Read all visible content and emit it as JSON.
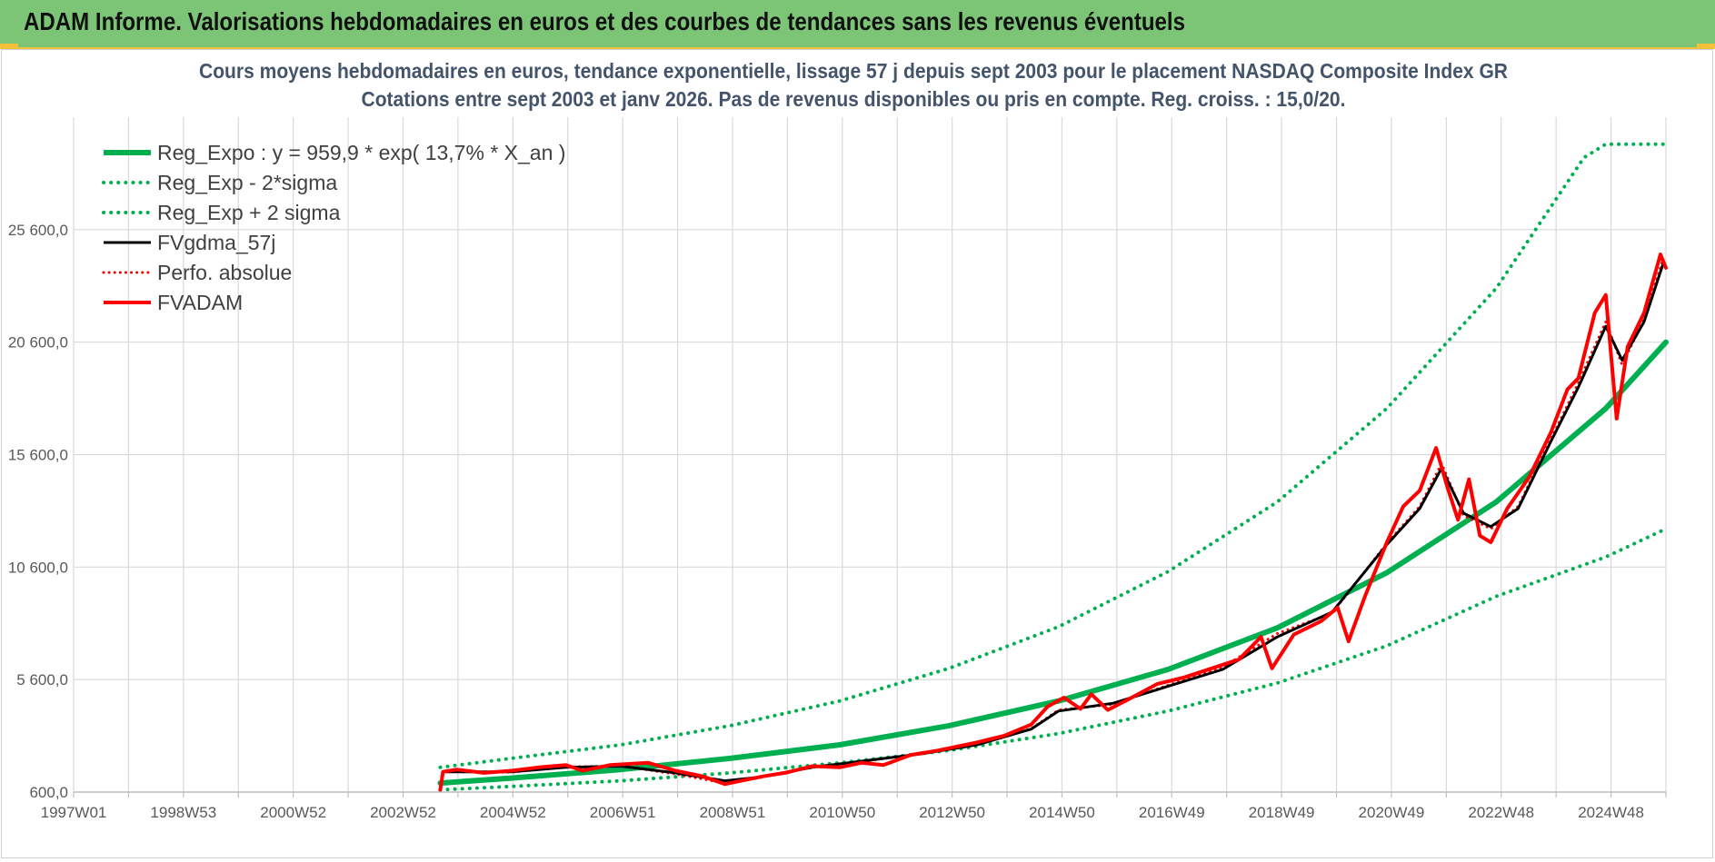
{
  "header": {
    "title": "ADAM Informe. Valorisations hebdomadaires en euros et des courbes de tendances sans les revenus éventuels",
    "colors": {
      "background": "#7cc576",
      "accent": "#f3c13a"
    }
  },
  "chart_data": {
    "type": "line",
    "title_line1": "Cours moyens hebdomadaires en euros, tendance exponentielle, lissage 57 j depuis sept 2003 pour le placement NASDAQ Composite Index GR",
    "title_line2": "Cotations entre sept 2003 et janv 2026. Pas de revenus disponibles ou pris en compte. Reg. croiss. : 15,0/20.",
    "xlabel": "",
    "ylabel": "",
    "x_tick_labels": [
      "1997W01",
      "1998W53",
      "2000W52",
      "2002W52",
      "2004W52",
      "2006W51",
      "2008W51",
      "2010W50",
      "2012W50",
      "2014W50",
      "2016W49",
      "2018W49",
      "2020W49",
      "2022W48",
      "2024W48"
    ],
    "y_tick_labels": [
      "600,0",
      "5 600,0",
      "10 600,0",
      "15 600,0",
      "20 600,0",
      "25 600,0"
    ],
    "y_ticks": [
      600,
      5600,
      10600,
      15600,
      20600,
      25600
    ],
    "xlim": [
      1997.0,
      2026.1
    ],
    "ylim": [
      600,
      30600
    ],
    "grid": true,
    "legend_position": "top-left",
    "series": [
      {
        "name": "Reg_Expo : y = 959,9 * exp( 13,7% *  X_an )",
        "color": "#00b050",
        "style": "solid",
        "width": 6,
        "points": [
          [
            2003.7,
            1000
          ],
          [
            2005,
            1220
          ],
          [
            2007,
            1600
          ],
          [
            2009,
            2100
          ],
          [
            2011,
            2700
          ],
          [
            2013,
            3550
          ],
          [
            2015,
            4650
          ],
          [
            2017,
            6050
          ],
          [
            2019,
            7900
          ],
          [
            2021,
            10350
          ],
          [
            2023,
            13500
          ],
          [
            2025,
            17650
          ],
          [
            2026.1,
            20600
          ]
        ]
      },
      {
        "name": "Reg_Exp - 2*sigma",
        "color": "#00b050",
        "style": "dotted",
        "width": 4,
        "points": [
          [
            2003.7,
            700
          ],
          [
            2005,
            850
          ],
          [
            2007,
            1100
          ],
          [
            2009,
            1450
          ],
          [
            2011,
            1900
          ],
          [
            2013,
            2450
          ],
          [
            2015,
            3200
          ],
          [
            2017,
            4200
          ],
          [
            2019,
            5450
          ],
          [
            2021,
            7100
          ],
          [
            2023,
            9300
          ],
          [
            2025,
            11050
          ],
          [
            2026.1,
            12300
          ]
        ]
      },
      {
        "name": "Reg_Exp + 2 sigma",
        "color": "#00b050",
        "style": "dotted",
        "width": 4,
        "points": [
          [
            2003.7,
            1700
          ],
          [
            2005,
            2100
          ],
          [
            2007,
            2700
          ],
          [
            2009,
            3550
          ],
          [
            2011,
            4650
          ],
          [
            2013,
            6100
          ],
          [
            2015,
            7950
          ],
          [
            2017,
            10400
          ],
          [
            2019,
            13500
          ],
          [
            2021,
            17650
          ],
          [
            2023,
            23000
          ],
          [
            2024.6,
            28800
          ],
          [
            2025,
            29400
          ],
          [
            2026.1,
            29400
          ]
        ]
      },
      {
        "name": "FVgdma_57j",
        "color": "#000000",
        "style": "solid",
        "width": 3,
        "points": [
          [
            2003.8,
            1500
          ],
          [
            2005,
            1500
          ],
          [
            2006,
            1700
          ],
          [
            2007,
            1750
          ],
          [
            2008,
            1450
          ],
          [
            2008.9,
            1100
          ],
          [
            2009.5,
            1250
          ],
          [
            2010.5,
            1700
          ],
          [
            2011.5,
            2000
          ],
          [
            2012.5,
            2300
          ],
          [
            2013.5,
            2700
          ],
          [
            2014.5,
            3400
          ],
          [
            2015,
            4200
          ],
          [
            2016,
            4550
          ],
          [
            2017,
            5300
          ],
          [
            2018,
            6050
          ],
          [
            2019,
            7500
          ],
          [
            2020,
            8600
          ],
          [
            2021,
            11600
          ],
          [
            2021.6,
            13200
          ],
          [
            2022,
            15000
          ],
          [
            2022.4,
            13000
          ],
          [
            2022.9,
            12400
          ],
          [
            2023.4,
            13200
          ],
          [
            2024,
            16200
          ],
          [
            2024.5,
            18600
          ],
          [
            2025,
            21300
          ],
          [
            2025.3,
            19800
          ],
          [
            2025.7,
            21500
          ],
          [
            2026.05,
            24100
          ]
        ]
      },
      {
        "name": "Perfo. absolue",
        "color": "#ff0000",
        "style": "dotted",
        "width": 3,
        "points": [
          [
            2003.7,
            700
          ],
          [
            2003.75,
            1500
          ],
          [
            2005,
            1480
          ],
          [
            2006,
            1720
          ],
          [
            2007,
            1760
          ],
          [
            2008,
            1400
          ],
          [
            2008.9,
            1000
          ],
          [
            2009.5,
            1220
          ],
          [
            2010.5,
            1720
          ],
          [
            2011.5,
            1980
          ],
          [
            2012.5,
            2320
          ],
          [
            2013.5,
            2680
          ],
          [
            2014.5,
            3420
          ],
          [
            2015,
            4250
          ],
          [
            2016,
            4500
          ],
          [
            2017,
            5350
          ],
          [
            2018,
            6150
          ],
          [
            2019,
            7650
          ],
          [
            2020,
            8550
          ],
          [
            2021,
            11650
          ],
          [
            2021.6,
            13300
          ],
          [
            2022,
            15200
          ],
          [
            2022.4,
            12900
          ],
          [
            2022.9,
            12300
          ],
          [
            2023.4,
            13300
          ],
          [
            2024,
            16300
          ],
          [
            2024.5,
            18800
          ],
          [
            2025,
            21500
          ],
          [
            2025.3,
            19600
          ],
          [
            2025.7,
            21600
          ],
          [
            2026.05,
            24300
          ]
        ]
      },
      {
        "name": "FVADAM",
        "color": "#ff0000",
        "style": "solid",
        "width": 4,
        "points": [
          [
            2003.7,
            700
          ],
          [
            2003.75,
            1500
          ],
          [
            2004,
            1600
          ],
          [
            2004.5,
            1450
          ],
          [
            2005,
            1550
          ],
          [
            2005.5,
            1700
          ],
          [
            2006,
            1800
          ],
          [
            2006.3,
            1550
          ],
          [
            2006.8,
            1800
          ],
          [
            2007.5,
            1900
          ],
          [
            2008,
            1550
          ],
          [
            2008.5,
            1300
          ],
          [
            2008.9,
            950
          ],
          [
            2009.2,
            1100
          ],
          [
            2009.6,
            1300
          ],
          [
            2010,
            1450
          ],
          [
            2010.5,
            1750
          ],
          [
            2011,
            1700
          ],
          [
            2011.4,
            1900
          ],
          [
            2011.8,
            1800
          ],
          [
            2012.3,
            2250
          ],
          [
            2012.8,
            2450
          ],
          [
            2013.5,
            2800
          ],
          [
            2014,
            3100
          ],
          [
            2014.5,
            3600
          ],
          [
            2014.8,
            4400
          ],
          [
            2015.1,
            4800
          ],
          [
            2015.4,
            4300
          ],
          [
            2015.6,
            4950
          ],
          [
            2015.9,
            4250
          ],
          [
            2016.3,
            4750
          ],
          [
            2016.8,
            5400
          ],
          [
            2017.3,
            5700
          ],
          [
            2017.8,
            6100
          ],
          [
            2018.3,
            6500
          ],
          [
            2018.7,
            7500
          ],
          [
            2018.9,
            6100
          ],
          [
            2019.3,
            7600
          ],
          [
            2019.8,
            8200
          ],
          [
            2020.1,
            8800
          ],
          [
            2020.3,
            7300
          ],
          [
            2020.6,
            9300
          ],
          [
            2021,
            11700
          ],
          [
            2021.3,
            13300
          ],
          [
            2021.6,
            14000
          ],
          [
            2021.9,
            15900
          ],
          [
            2022.1,
            14200
          ],
          [
            2022.3,
            12700
          ],
          [
            2022.5,
            14500
          ],
          [
            2022.7,
            12000
          ],
          [
            2022.9,
            11700
          ],
          [
            2023.2,
            13200
          ],
          [
            2023.6,
            14600
          ],
          [
            2024,
            16600
          ],
          [
            2024.3,
            18500
          ],
          [
            2024.5,
            19000
          ],
          [
            2024.8,
            21900
          ],
          [
            2025,
            22700
          ],
          [
            2025.2,
            17200
          ],
          [
            2025.4,
            20400
          ],
          [
            2025.7,
            21900
          ],
          [
            2026,
            24500
          ],
          [
            2026.1,
            23900
          ]
        ]
      }
    ]
  }
}
